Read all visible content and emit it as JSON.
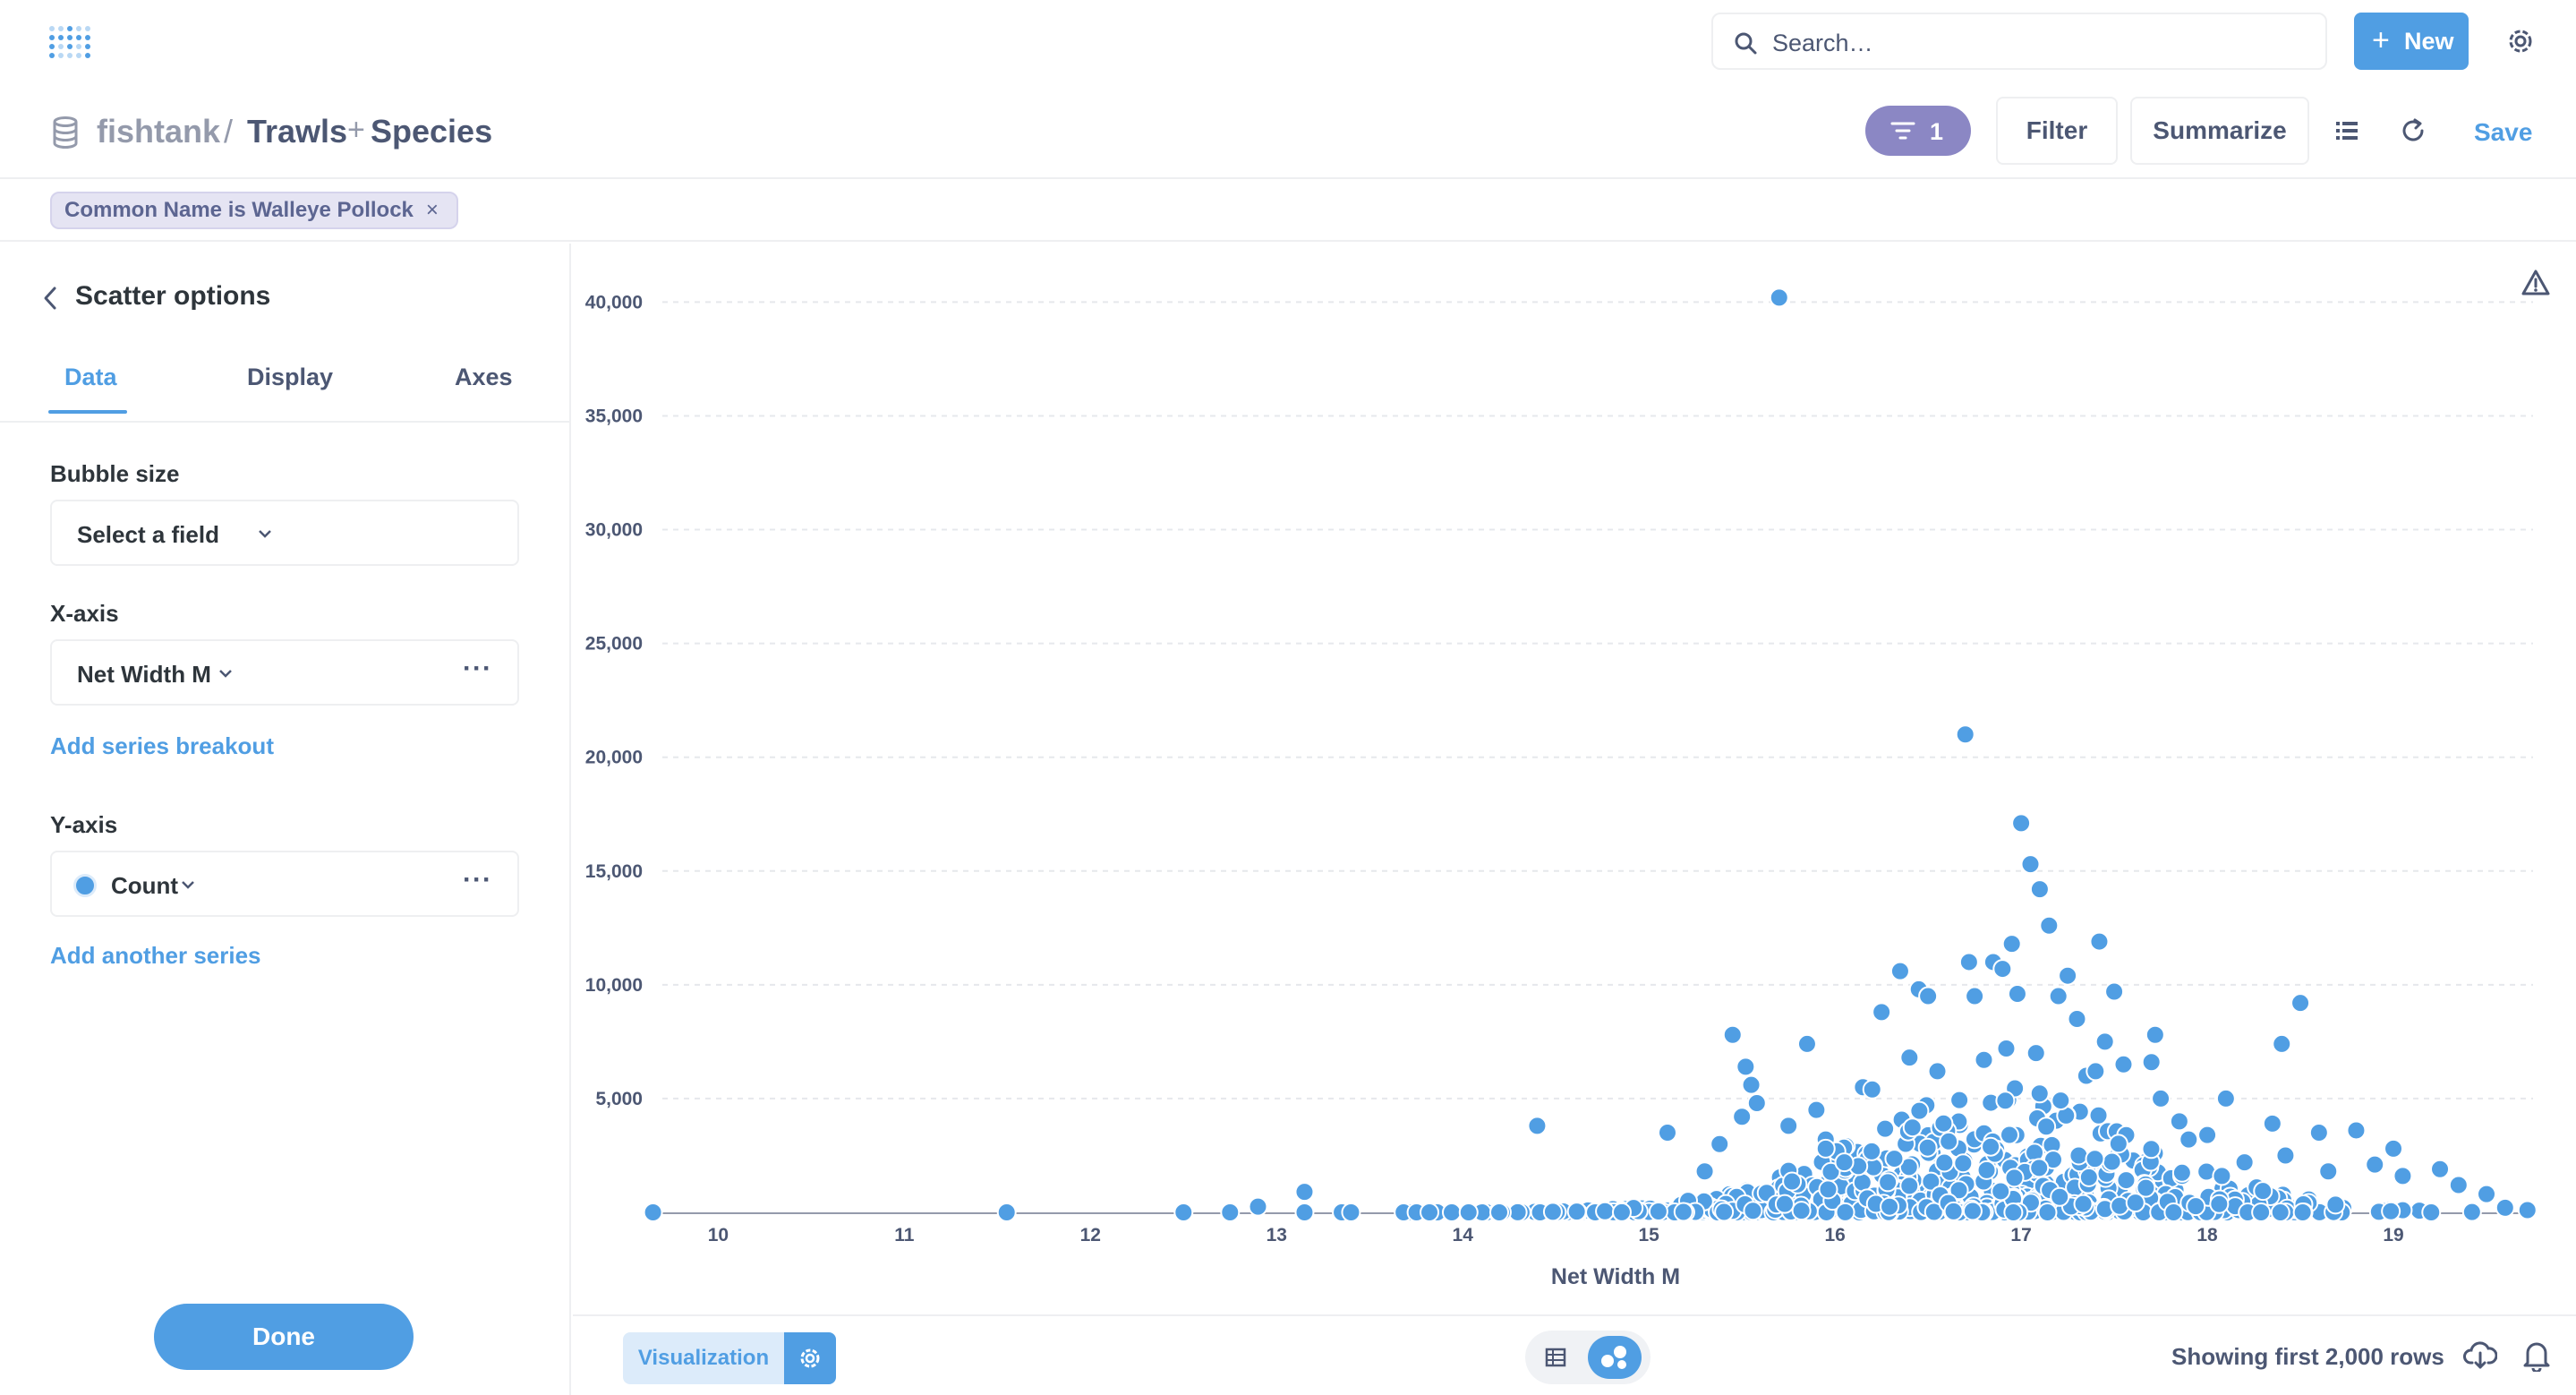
{
  "nav": {
    "logo_icon": "metabase-logo-icon",
    "search_placeholder": "Search…",
    "new_label": "New",
    "settings_icon": "gear-icon",
    "accent": "#509ee3"
  },
  "header": {
    "database": "fishtank",
    "separator": "/",
    "table_1": "Trawls",
    "join_symbol": "+",
    "table_2": "Species",
    "filter_count": "1",
    "filter_label": "Filter",
    "summarize_label": "Summarize",
    "save_label": "Save"
  },
  "filter_chip": {
    "label": "Common Name is Walleye Pollock",
    "remove": "×"
  },
  "sidebar": {
    "title": "Scatter options",
    "tabs": [
      {
        "label": "Data",
        "active": true
      },
      {
        "label": "Display",
        "active": false
      },
      {
        "label": "Axes",
        "active": false
      }
    ],
    "bubble_size_label": "Bubble size",
    "bubble_size_value": "Select a field",
    "x_axis_label": "X-axis",
    "x_axis_value": "Net Width M",
    "more": "···",
    "add_breakout": "Add series breakout",
    "y_axis_label": "Y-axis",
    "y_axis_value": "Count",
    "add_series": "Add another series",
    "done_label": "Done"
  },
  "chart_data": {
    "type": "scatter",
    "xlabel": "Net Width M",
    "ylabel": "Count",
    "xlim": [
      9.7,
      19.75
    ],
    "ylim": [
      0,
      41000
    ],
    "x_ticks": [
      10,
      11,
      12,
      13,
      14,
      15,
      16,
      17,
      18,
      19
    ],
    "y_ticks": [
      5000,
      10000,
      15000,
      20000,
      25000,
      30000,
      35000,
      40000
    ],
    "y_tick_labels": [
      "5,000",
      "10,000",
      "15,000",
      "20,000",
      "25,000",
      "30,000",
      "35,000",
      "40,000"
    ],
    "grid": "horizontal dashed",
    "color": "#509ee3",
    "series": [
      {
        "x": [
          9.65,
          11.55,
          12.5,
          12.75,
          12.9,
          13.15,
          13.15,
          13.35,
          13.4,
          14.4,
          15.1,
          15.45,
          15.52,
          15.55,
          15.58,
          15.5,
          15.38,
          15.3,
          15.7,
          15.75,
          15.85,
          15.9,
          15.95,
          15.95,
          16.05,
          16.15,
          16.2,
          16.25,
          16.35,
          16.4,
          16.45,
          16.5,
          16.55,
          16.7,
          16.72,
          16.75,
          16.8,
          16.85,
          16.9,
          16.92,
          16.95,
          16.98,
          17.0,
          17.05,
          17.08,
          17.1,
          17.15,
          17.2,
          17.25,
          17.3,
          17.35,
          17.4,
          17.42,
          17.45,
          17.5,
          17.55,
          17.7,
          17.72,
          17.75,
          17.85,
          17.9,
          18.0,
          18.1,
          18.2,
          18.35,
          18.4,
          18.42,
          18.5,
          18.6,
          18.65,
          18.8,
          18.9,
          19.0,
          19.05,
          19.25,
          19.35,
          19.5,
          19.6,
          19.72
        ],
        "y": [
          0,
          0,
          0,
          0,
          250,
          900,
          0,
          0,
          0,
          3800,
          3500,
          7800,
          6400,
          5600,
          4800,
          4200,
          3000,
          1800,
          40200,
          3800,
          7400,
          4500,
          3200,
          2800,
          2200,
          5500,
          5400,
          8800,
          10600,
          6800,
          9800,
          9500,
          6200,
          21000,
          11000,
          9500,
          6700,
          11000,
          10700,
          7200,
          11800,
          9600,
          17100,
          15300,
          7000,
          14200,
          12600,
          9500,
          10400,
          8500,
          6000,
          6200,
          11900,
          7500,
          9700,
          6500,
          6600,
          7800,
          5000,
          4000,
          3200,
          3400,
          5000,
          2200,
          3900,
          7400,
          2500,
          9200,
          3500,
          1800,
          3600,
          2100,
          2800,
          1600,
          1900,
          1200,
          800,
          200,
          100
        ]
      }
    ]
  },
  "footer": {
    "visualization_label": "Visualization",
    "rows_text": "Showing first 2,000 rows"
  }
}
